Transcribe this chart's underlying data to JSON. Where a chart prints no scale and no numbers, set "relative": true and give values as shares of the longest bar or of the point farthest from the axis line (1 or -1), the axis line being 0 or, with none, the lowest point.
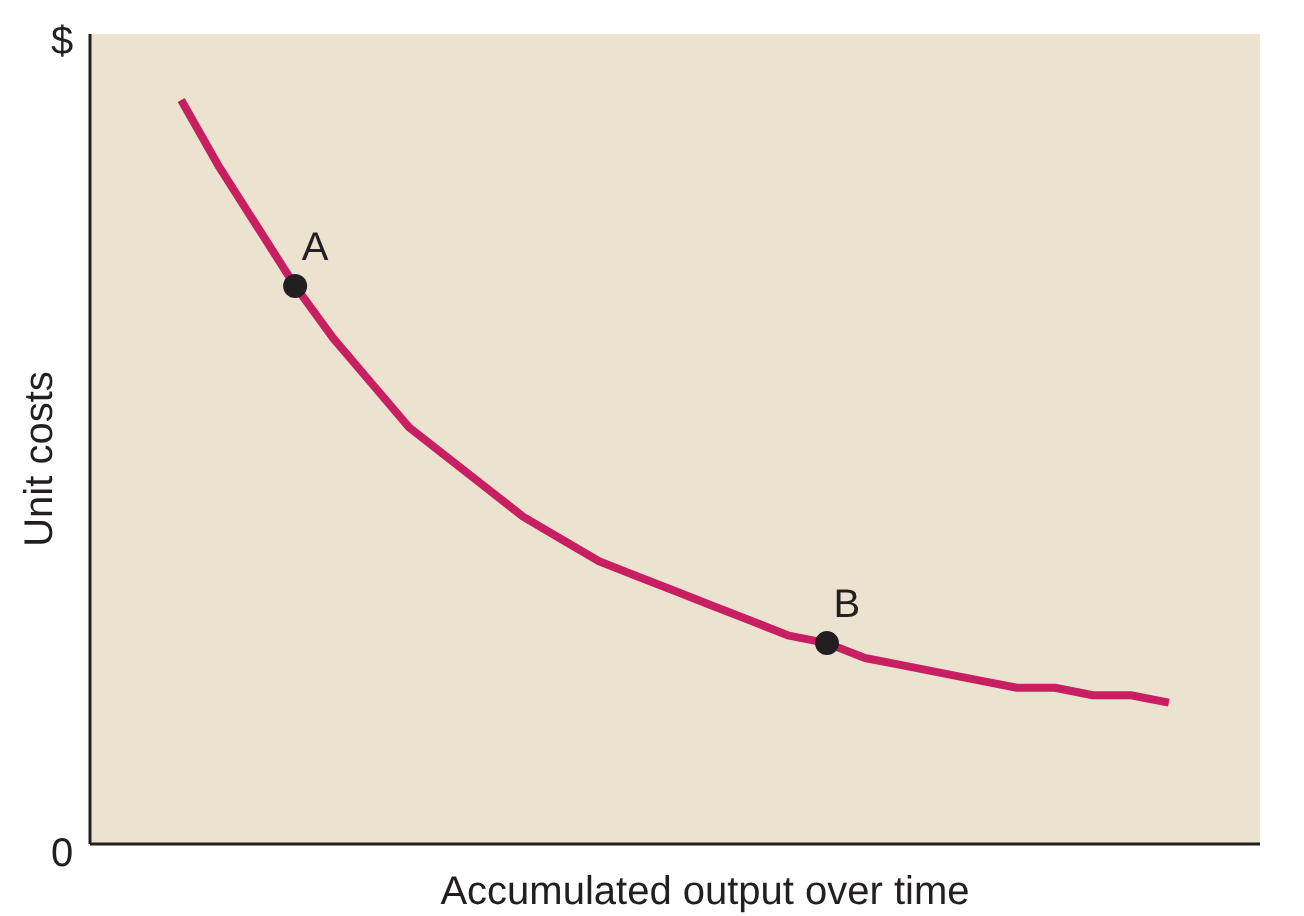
{
  "chart_data": {
    "type": "line",
    "xlabel": "Accumulated output over time",
    "ylabel": "Unit costs",
    "categories": [
      null,
      null,
      null,
      null,
      null,
      null,
      null,
      null,
      null,
      null,
      null,
      null,
      null,
      null,
      null,
      null,
      null,
      null,
      null,
      null,
      null,
      null,
      null,
      null,
      null,
      null,
      null
    ],
    "relative": true,
    "series": [
      {
        "color": "#c81f62",
        "values": [
          1.0,
          0.91,
          0.83,
          0.75,
          0.68,
          0.62,
          0.56,
          0.52,
          0.48,
          0.44,
          0.41,
          0.38,
          0.36,
          0.34,
          0.32,
          0.3,
          0.28,
          0.27,
          0.25,
          0.24,
          0.23,
          0.22,
          0.21,
          0.21,
          0.2,
          0.2,
          0.19
        ]
      }
    ],
    "annotations": [
      "$",
      "0",
      {
        "text": "A",
        "y": 0.75
      },
      {
        "text": "B",
        "y": 0.27
      }
    ]
  }
}
